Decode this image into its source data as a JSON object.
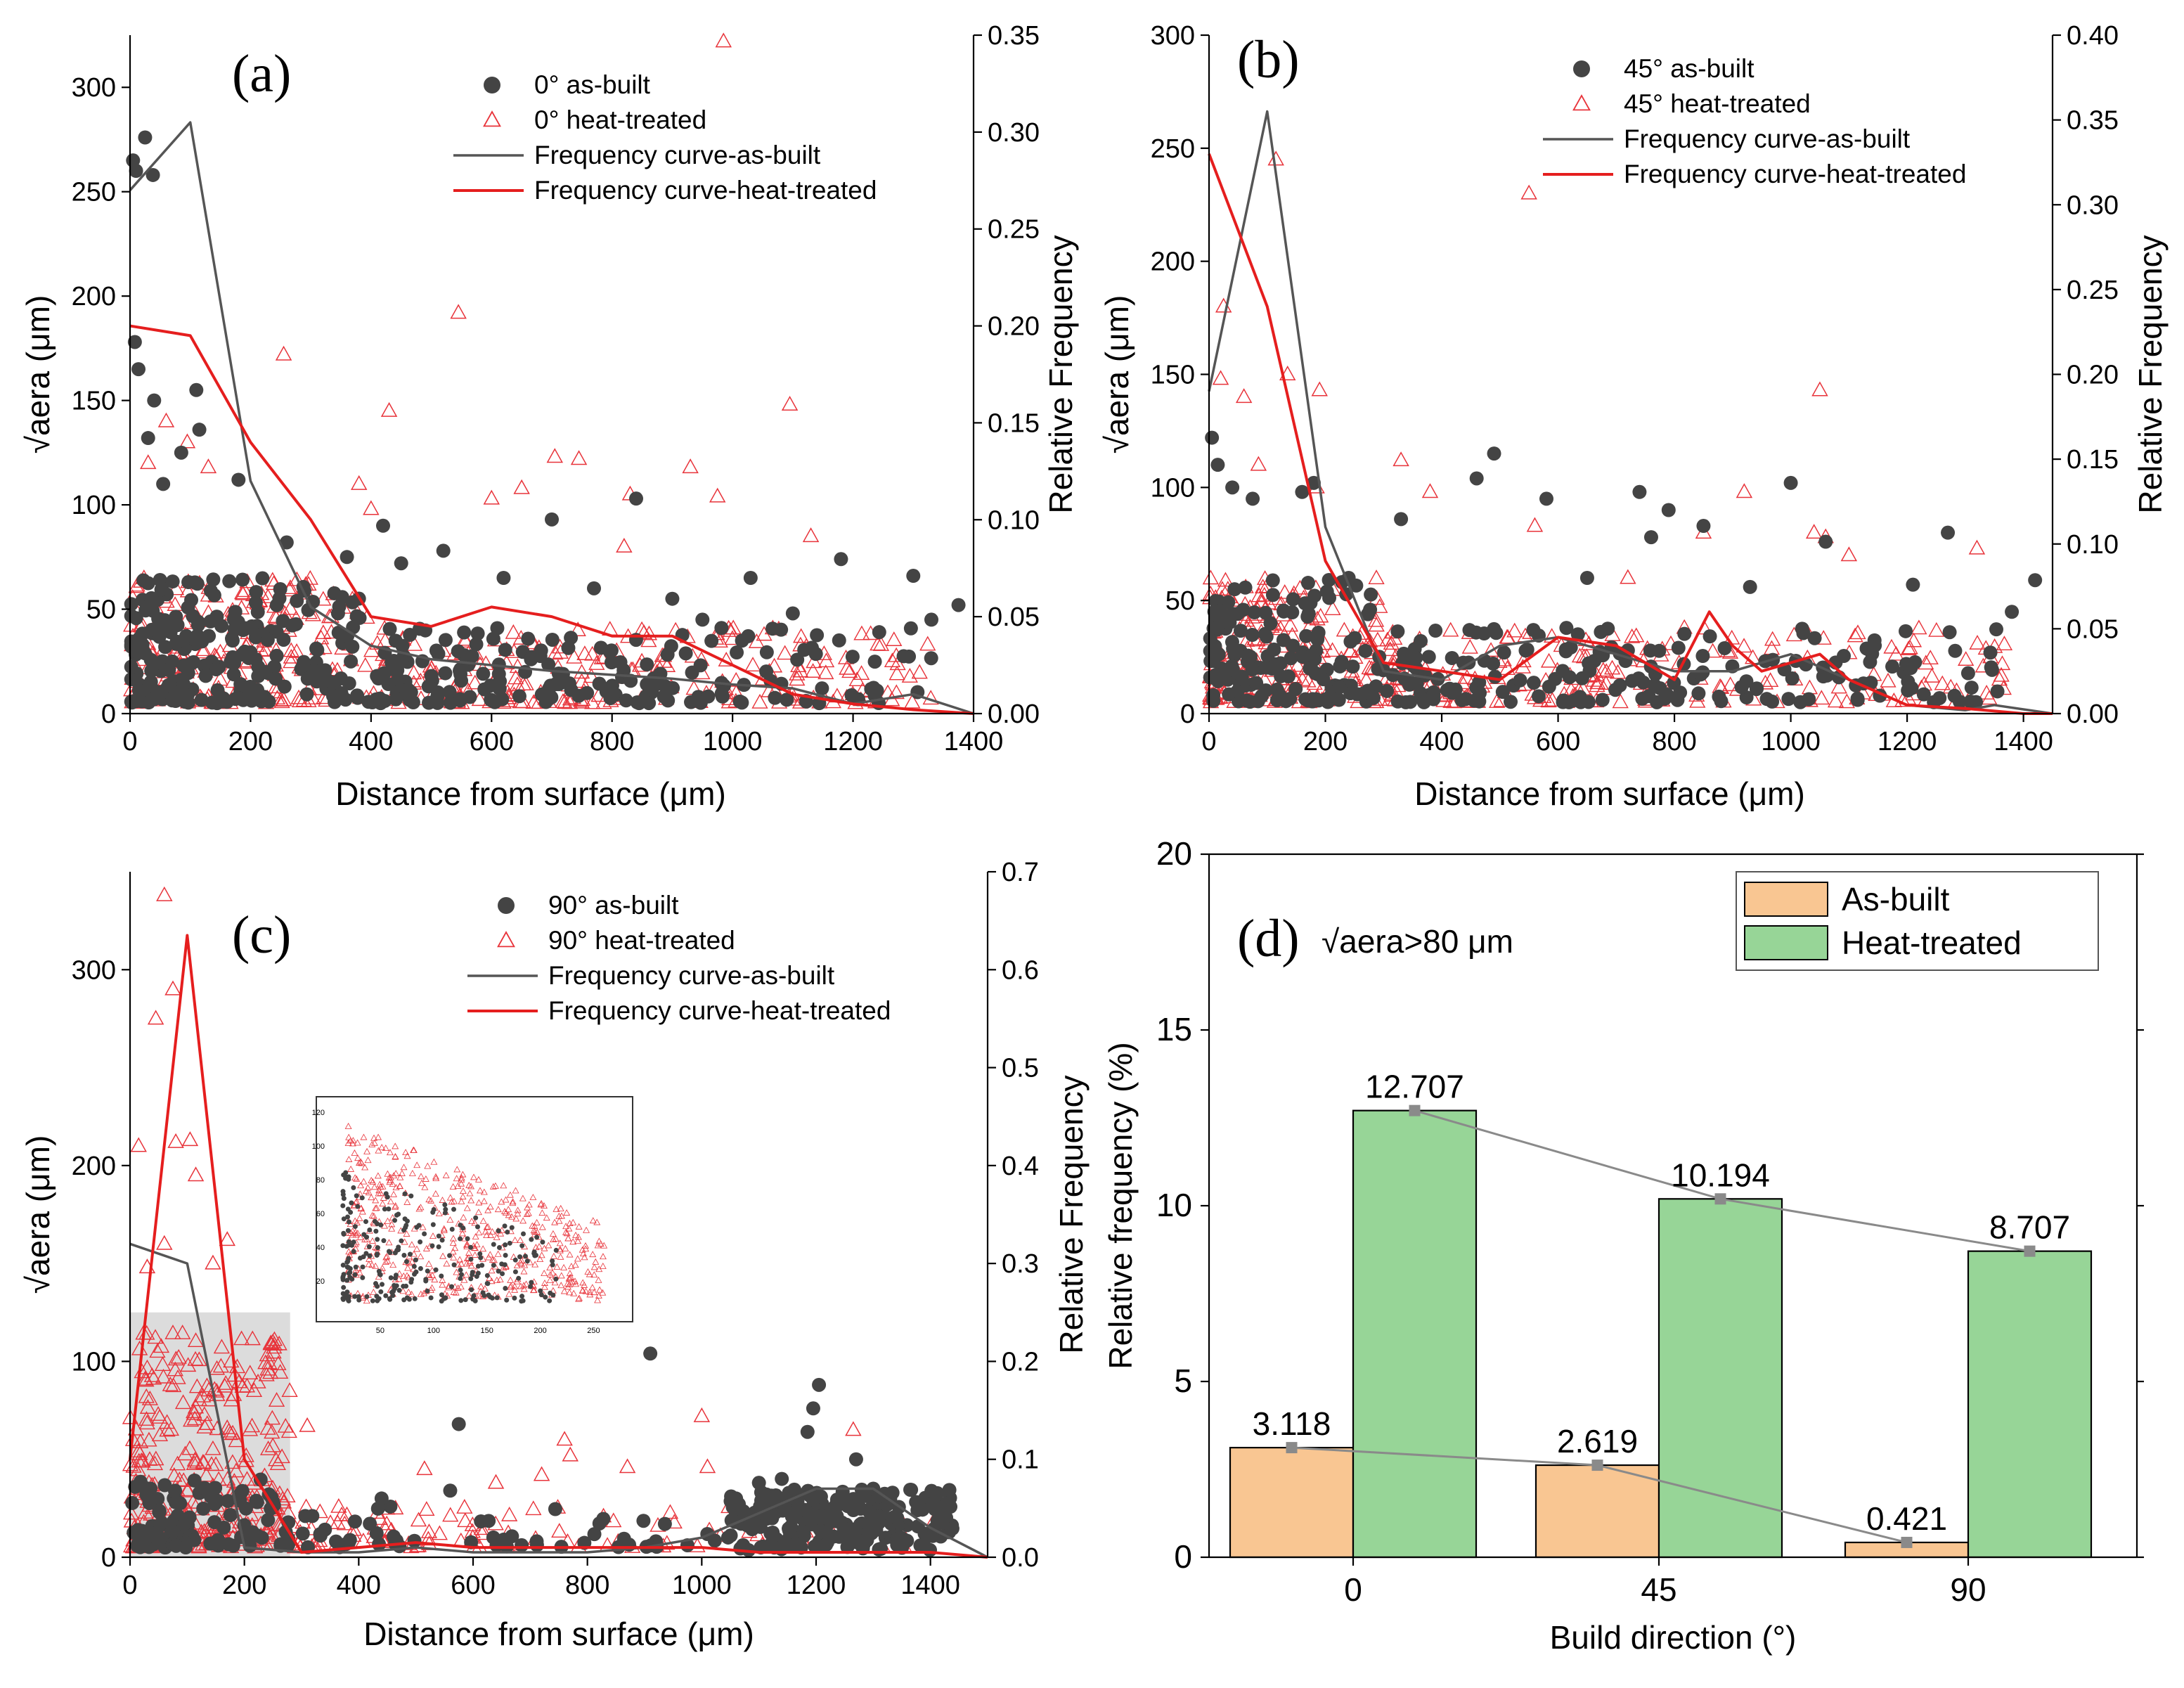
{
  "figure": {
    "panels": [
      {
        "id": "a",
        "letter": "(a)",
        "type": "scatter",
        "xlabel": "Distance from surface (μm)",
        "ylabel": "√aera (μm)",
        "y2label": "Relative Frequency",
        "xlim": [
          0,
          1400
        ],
        "ylim": [
          0,
          325
        ],
        "y2lim": [
          0,
          0.35
        ],
        "xticks": [
          "0",
          "200",
          "400",
          "600",
          "800",
          "1000",
          "1200",
          "1400"
        ],
        "yticks": [
          "0",
          "50",
          "100",
          "150",
          "200",
          "250",
          "300"
        ],
        "y2ticks": [
          "0.00",
          "0.05",
          "0.10",
          "0.15",
          "0.20",
          "0.25",
          "0.30",
          "0.35"
        ],
        "legend": [
          "0° as-built",
          "0° heat-treated",
          "Frequency curve-as-built",
          "Frequency curve-heat-treated"
        ],
        "curve_as_built": {
          "x": [
            0,
            100,
            200,
            300,
            400,
            500,
            600,
            700,
            800,
            900,
            1000,
            1100,
            1200,
            1300,
            1400
          ],
          "y": [
            0.27,
            0.305,
            0.12,
            0.055,
            0.035,
            0.028,
            0.025,
            0.022,
            0.02,
            0.018,
            0.015,
            0.013,
            0.005,
            0.01,
            0.0
          ]
        },
        "curve_heat_treated": {
          "x": [
            0,
            100,
            200,
            300,
            400,
            500,
            600,
            700,
            800,
            900,
            1000,
            1100,
            1200,
            1300,
            1400
          ],
          "y": [
            0.2,
            0.195,
            0.14,
            0.1,
            0.05,
            0.045,
            0.055,
            0.05,
            0.04,
            0.04,
            0.025,
            0.01,
            0.005,
            0.002,
            0.0
          ]
        },
        "outliers_as_built": [
          [
            5,
            265
          ],
          [
            10,
            260
          ],
          [
            25,
            276
          ],
          [
            38,
            258
          ],
          [
            8,
            178
          ],
          [
            14,
            165
          ],
          [
            40,
            150
          ],
          [
            30,
            132
          ],
          [
            110,
            155
          ],
          [
            85,
            125
          ],
          [
            115,
            136
          ],
          [
            55,
            110
          ],
          [
            180,
            112
          ],
          [
            260,
            82
          ],
          [
            360,
            75
          ],
          [
            420,
            90
          ],
          [
            450,
            72
          ],
          [
            520,
            78
          ],
          [
            620,
            65
          ],
          [
            700,
            93
          ],
          [
            770,
            60
          ],
          [
            840,
            103
          ],
          [
            900,
            55
          ],
          [
            1030,
            65
          ],
          [
            1180,
            74
          ],
          [
            1300,
            66
          ],
          [
            1330,
            45
          ],
          [
            1375,
            52
          ],
          [
            950,
            45
          ],
          [
            1100,
            48
          ]
        ],
        "outliers_heat_treated": [
          [
            985,
            322
          ],
          [
            545,
            192
          ],
          [
            255,
            172
          ],
          [
            430,
            145
          ],
          [
            1095,
            148
          ],
          [
            30,
            120
          ],
          [
            60,
            140
          ],
          [
            95,
            130
          ],
          [
            130,
            118
          ],
          [
            380,
            110
          ],
          [
            400,
            98
          ],
          [
            705,
            123
          ],
          [
            745,
            122
          ],
          [
            830,
            105
          ],
          [
            930,
            118
          ],
          [
            975,
            104
          ],
          [
            1130,
            85
          ],
          [
            820,
            80
          ],
          [
            600,
            103
          ],
          [
            650,
            108
          ]
        ],
        "scatter_meta": {
          "n_as_built": 420,
          "n_heat_treated": 480,
          "dense_ymax": 60,
          "decay": 330,
          "xmax": 1330
        }
      },
      {
        "id": "b",
        "letter": "(b)",
        "type": "scatter",
        "xlabel": "Distance from surface (μm)",
        "ylabel": "√aera (μm)",
        "y2label": "Relative Frequency",
        "xlim": [
          0,
          1450
        ],
        "ylim": [
          0,
          300
        ],
        "y2lim": [
          0,
          0.4
        ],
        "xticks": [
          "0",
          "200",
          "400",
          "600",
          "800",
          "1000",
          "1200",
          "1400"
        ],
        "yticks": [
          "0",
          "50",
          "100",
          "150",
          "200",
          "250",
          "300"
        ],
        "y2ticks": [
          "0.00",
          "0.05",
          "0.10",
          "0.15",
          "0.20",
          "0.25",
          "0.30",
          "0.35",
          "0.40"
        ],
        "legend": [
          "45° as-built",
          "45° heat-treated",
          "Frequency curve-as-built",
          "Frequency curve-heat-treated"
        ],
        "curve_as_built": {
          "x": [
            0,
            100,
            200,
            300,
            400,
            500,
            600,
            700,
            800,
            900,
            1000,
            1100,
            1200,
            1300,
            1350,
            1450
          ],
          "y": [
            0.19,
            0.355,
            0.11,
            0.025,
            0.02,
            0.04,
            0.045,
            0.035,
            0.025,
            0.025,
            0.035,
            0.02,
            0.005,
            0.002,
            0.005,
            0.0
          ]
        },
        "curve_heat_treated": {
          "x": [
            0,
            100,
            200,
            300,
            400,
            500,
            600,
            700,
            800,
            860,
            900,
            950,
            1000,
            1050,
            1100,
            1200,
            1300,
            1400,
            1450
          ],
          "y": [
            0.33,
            0.24,
            0.09,
            0.03,
            0.025,
            0.02,
            0.045,
            0.04,
            0.02,
            0.06,
            0.04,
            0.025,
            0.03,
            0.035,
            0.02,
            0.005,
            0.003,
            0.0,
            0.0
          ]
        },
        "outliers_as_built": [
          [
            5,
            122
          ],
          [
            15,
            110
          ],
          [
            40,
            100
          ],
          [
            75,
            95
          ],
          [
            180,
            102
          ],
          [
            160,
            98
          ],
          [
            330,
            86
          ],
          [
            460,
            104
          ],
          [
            490,
            115
          ],
          [
            580,
            95
          ],
          [
            740,
            98
          ],
          [
            760,
            78
          ],
          [
            790,
            90
          ],
          [
            850,
            83
          ],
          [
            1000,
            102
          ],
          [
            1060,
            76
          ],
          [
            1270,
            80
          ],
          [
            1420,
            59
          ],
          [
            1380,
            45
          ],
          [
            1210,
            57
          ],
          [
            930,
            56
          ],
          [
            650,
            60
          ],
          [
            240,
            60
          ]
        ],
        "outliers_heat_treated": [
          [
            115,
            245
          ],
          [
            550,
            230
          ],
          [
            25,
            180
          ],
          [
            20,
            148
          ],
          [
            135,
            150
          ],
          [
            190,
            143
          ],
          [
            60,
            140
          ],
          [
            85,
            110
          ],
          [
            330,
            112
          ],
          [
            380,
            98
          ],
          [
            185,
            100
          ],
          [
            1050,
            143
          ],
          [
            920,
            98
          ],
          [
            850,
            80
          ],
          [
            1040,
            80
          ],
          [
            1060,
            78
          ],
          [
            1100,
            70
          ],
          [
            1320,
            73
          ],
          [
            560,
            83
          ],
          [
            720,
            60
          ]
        ],
        "scatter_meta": {
          "n_as_built": 340,
          "n_heat_treated": 420,
          "dense_ymax": 55,
          "decay": 260,
          "xmax": 1380
        }
      },
      {
        "id": "c",
        "letter": "(c)",
        "type": "scatter",
        "xlabel": "Distance from surface (μm)",
        "ylabel": "√aera (μm)",
        "y2label": "Relative Frequency",
        "xlim": [
          0,
          1500
        ],
        "ylim": [
          0,
          350
        ],
        "y2lim": [
          0,
          0.7
        ],
        "xticks": [
          "0",
          "200",
          "400",
          "600",
          "800",
          "1000",
          "1200",
          "1400"
        ],
        "yticks": [
          "0",
          "100",
          "200",
          "300"
        ],
        "y2ticks": [
          "0.0",
          "0.1",
          "0.2",
          "0.3",
          "0.4",
          "0.5",
          "0.6",
          "0.7"
        ],
        "legend": [
          "90° as-built",
          "90° heat-treated",
          "Frequency curve-as-built",
          "Frequency curve-heat-treated"
        ],
        "curve_as_built": {
          "x": [
            0,
            100,
            200,
            300,
            400,
            500,
            600,
            700,
            800,
            900,
            1000,
            1100,
            1200,
            1300,
            1400,
            1500
          ],
          "y": [
            0.32,
            0.3,
            0.01,
            0.005,
            0.005,
            0.01,
            0.005,
            0.005,
            0.005,
            0.01,
            0.02,
            0.045,
            0.07,
            0.07,
            0.03,
            0.0
          ]
        },
        "curve_heat_treated": {
          "x": [
            0,
            100,
            200,
            300,
            400,
            500,
            600,
            700,
            800,
            900,
            1000,
            1100,
            1200,
            1300,
            1400,
            1500
          ],
          "y": [
            0.1,
            0.635,
            0.1,
            0.005,
            0.01,
            0.015,
            0.01,
            0.01,
            0.01,
            0.01,
            0.01,
            0.005,
            0.005,
            0.005,
            0.005,
            0.0
          ]
        },
        "outliers_as_built": [
          [
            910,
            104
          ],
          [
            1205,
            88
          ],
          [
            1195,
            76
          ],
          [
            1185,
            64
          ],
          [
            575,
            68
          ],
          [
            1270,
            50
          ],
          [
            1140,
            40
          ],
          [
            1100,
            38
          ],
          [
            1300,
            35
          ],
          [
            1060,
            30
          ],
          [
            440,
            30
          ],
          [
            560,
            34
          ]
        ],
        "outliers_heat_treated": [
          [
            60,
            338
          ],
          [
            75,
            290
          ],
          [
            45,
            275
          ],
          [
            80,
            212
          ],
          [
            15,
            210
          ],
          [
            105,
            213
          ],
          [
            115,
            195
          ],
          [
            170,
            162
          ],
          [
            60,
            160
          ],
          [
            30,
            148
          ],
          [
            145,
            150
          ],
          [
            310,
            67
          ],
          [
            1265,
            65
          ],
          [
            760,
            60
          ],
          [
            770,
            52
          ],
          [
            1000,
            72
          ],
          [
            515,
            45
          ],
          [
            870,
            46
          ],
          [
            1010,
            46
          ],
          [
            720,
            42
          ],
          [
            640,
            38
          ]
        ],
        "scatter_meta": {
          "n_as_built": 380,
          "n_heat_treated": 430,
          "dense_ymax": 35,
          "decay": 220,
          "xmax": 1440
        },
        "highlight_box": {
          "x0": 0,
          "x1": 280,
          "y0": 0,
          "y1": 125
        },
        "inset": {
          "xticks": [
            "50",
            "100",
            "150",
            "200",
            "250"
          ],
          "yticks": [
            "20",
            "40",
            "60",
            "80",
            "100",
            "120"
          ],
          "xlim": [
            0,
            280
          ],
          "ylim": [
            0,
            125
          ]
        }
      }
    ]
  },
  "chart_data": [
    {
      "type": "bar",
      "panel": "(d)",
      "annotation": "√aera>80 μm",
      "title": "",
      "xlabel": "Build direction (°)",
      "ylabel": "Relative frequency (%)",
      "ylim": [
        0,
        20
      ],
      "yticks": [
        "0",
        "5",
        "10",
        "15",
        "20"
      ],
      "categories": [
        "0",
        "45",
        "90"
      ],
      "series": [
        {
          "name": "As-built",
          "color": "#f9c692",
          "values": [
            3.118,
            2.619,
            0.421
          ],
          "labels": [
            "3.118",
            "2.619",
            "0.421"
          ]
        },
        {
          "name": "Heat-treated",
          "color": "#97d597",
          "values": [
            12.707,
            10.194,
            8.707
          ],
          "labels": [
            "12.707",
            "10.194",
            "8.707"
          ]
        }
      ]
    }
  ],
  "colors": {
    "as_built": "#444444",
    "heat_treated": "#e8333a",
    "curve_as_built": "#555555",
    "curve_heat_treated": "#e51e1e",
    "connector": "#8a8a8a"
  }
}
